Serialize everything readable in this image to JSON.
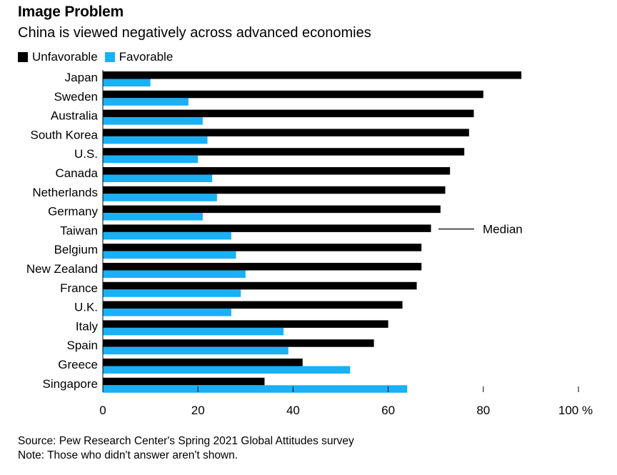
{
  "title": "Image Problem",
  "subtitle": "China is viewed negatively across advanced economies",
  "legend": {
    "unfavorable": "Unfavorable",
    "favorable": "Favorable"
  },
  "colors": {
    "unfavorable": "#000000",
    "favorable": "#1ab0f5",
    "axis": "#000000"
  },
  "annotation": "Median",
  "source": "Source: Pew Research Center's Spring 2021 Global Attitudes survey",
  "note": "Note: Those who didn't answer aren't shown.",
  "chart_data": {
    "type": "bar",
    "orientation": "horizontal",
    "categories": [
      "Japan",
      "Sweden",
      "Australia",
      "South Korea",
      "U.S.",
      "Canada",
      "Netherlands",
      "Germany",
      "Taiwan",
      "Belgium",
      "New Zealand",
      "France",
      "U.K.",
      "Italy",
      "Spain",
      "Greece",
      "Singapore"
    ],
    "series": [
      {
        "name": "Unfavorable",
        "values": [
          88,
          80,
          78,
          77,
          76,
          73,
          72,
          71,
          69,
          67,
          67,
          66,
          63,
          60,
          57,
          42,
          34
        ]
      },
      {
        "name": "Favorable",
        "values": [
          10,
          18,
          21,
          22,
          20,
          23,
          24,
          21,
          27,
          28,
          30,
          29,
          27,
          38,
          39,
          52,
          64
        ]
      }
    ],
    "xlim": [
      0,
      100
    ],
    "xticks": [
      0,
      20,
      40,
      60,
      80,
      100
    ],
    "xtick_labels": [
      "0",
      "20",
      "40",
      "60",
      "80",
      "100 %"
    ],
    "median_category": "Taiwan",
    "grid": false,
    "legend_position": "top-left"
  }
}
